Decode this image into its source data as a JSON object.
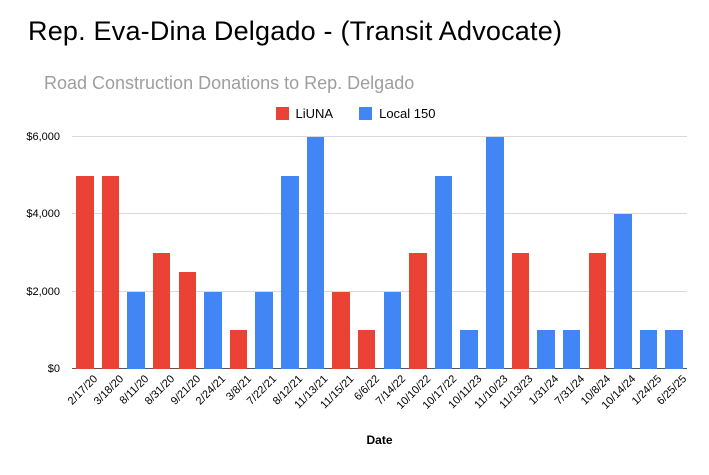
{
  "page": {
    "title": "Rep. Eva-Dina Delgado - (Transit Advocate)"
  },
  "chart_data": {
    "type": "bar",
    "title": "Road Construction Donations to Rep. Delgado",
    "xlabel": "Date",
    "ylabel": "",
    "ylim": [
      0,
      6000
    ],
    "grid": true,
    "legend_position": "top",
    "yticks": [
      {
        "label": "$0",
        "value": 0
      },
      {
        "label": "$2,000",
        "value": 2000
      },
      {
        "label": "$4,000",
        "value": 4000
      },
      {
        "label": "$6,000",
        "value": 6000
      }
    ],
    "categories": [
      "2/17/20",
      "3/18/20",
      "8/11/20",
      "8/31/20",
      "9/21/20",
      "2/24/21",
      "3/8/21",
      "7/22/21",
      "8/12/21",
      "11/13/21",
      "11/15/21",
      "6/6/22",
      "7/14/22",
      "10/10/22",
      "10/17/22",
      "10/11/23",
      "11/10/23",
      "11/13/23",
      "1/31/24",
      "7/31/24",
      "10/8/24",
      "10/14/24",
      "1/24/25",
      "6/25/25"
    ],
    "series": [
      {
        "name": "LiUNA",
        "color": "#ea4335",
        "values": [
          5000,
          5000,
          null,
          3000,
          2500,
          null,
          1000,
          null,
          null,
          null,
          2000,
          1000,
          null,
          3000,
          null,
          null,
          null,
          3000,
          null,
          null,
          3000,
          null,
          null,
          null
        ]
      },
      {
        "name": "Local 150",
        "color": "#4285f4",
        "values": [
          null,
          null,
          2000,
          null,
          null,
          2000,
          null,
          2000,
          5000,
          6000,
          null,
          null,
          2000,
          null,
          5000,
          1000,
          6000,
          null,
          1000,
          1000,
          null,
          4000,
          1000,
          1000
        ]
      }
    ]
  }
}
